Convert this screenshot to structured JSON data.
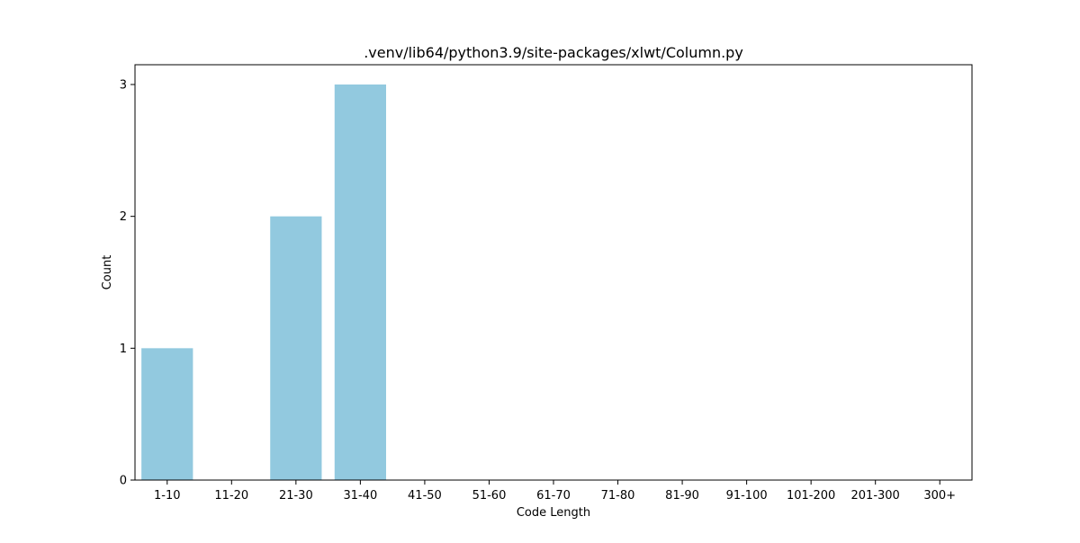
{
  "chart_data": {
    "type": "bar",
    "title": ".venv/lib64/python3.9/site-packages/xlwt/Column.py",
    "xlabel": "Code Length",
    "ylabel": "Count",
    "categories": [
      "1-10",
      "11-20",
      "21-30",
      "31-40",
      "41-50",
      "51-60",
      "61-70",
      "71-80",
      "81-90",
      "91-100",
      "101-200",
      "201-300",
      "300+"
    ],
    "values": [
      1,
      0,
      2,
      3,
      0,
      0,
      0,
      0,
      0,
      0,
      0,
      0,
      0
    ],
    "ylim": [
      0,
      3.15
    ],
    "yticks": [
      0,
      1,
      2,
      3
    ],
    "grid": false,
    "bar_color": "#92c9df",
    "legend": null
  }
}
